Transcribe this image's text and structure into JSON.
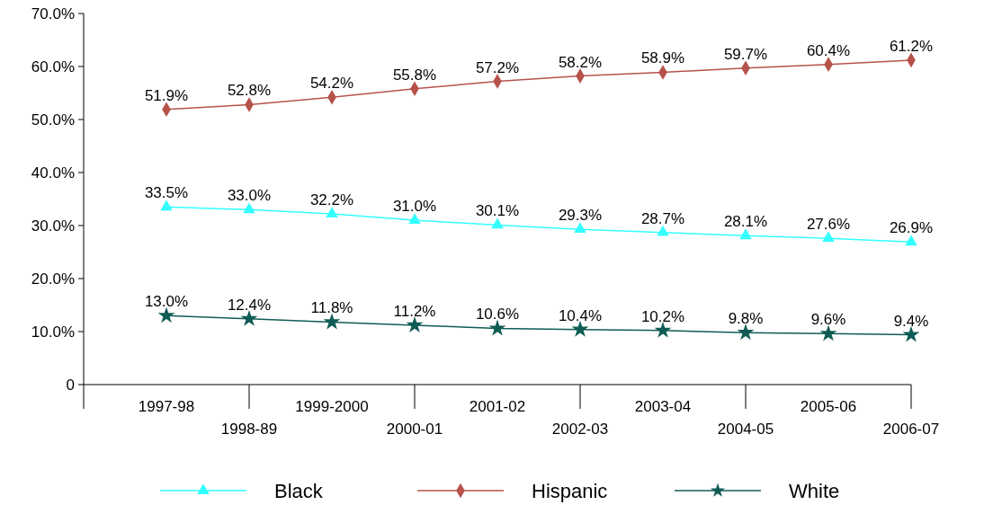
{
  "chart_data": {
    "type": "line",
    "categories": [
      "1997-98",
      "1998-89",
      "1999-2000",
      "2000-01",
      "2001-02",
      "2002-03",
      "2003-04",
      "2004-05",
      "2005-06",
      "2006-07"
    ],
    "series": [
      {
        "name": "Black",
        "color": "#33ffff",
        "marker": "triangle",
        "values": [
          33.5,
          33.0,
          32.2,
          31.0,
          30.1,
          29.3,
          28.7,
          28.1,
          27.6,
          26.9
        ],
        "value_labels": [
          "33.5%",
          "33.0%",
          "32.2%",
          "31.0%",
          "30.1%",
          "29.3%",
          "28.7%",
          "28.1%",
          "27.6%",
          "26.9%"
        ]
      },
      {
        "name": "Hispanic",
        "color": "#b5524a",
        "marker": "diamond",
        "values": [
          51.9,
          52.8,
          54.2,
          55.8,
          57.2,
          58.2,
          58.9,
          59.7,
          60.4,
          61.2
        ],
        "value_labels": [
          "51.9%",
          "52.8%",
          "54.2%",
          "55.8%",
          "57.2%",
          "58.2%",
          "58.9%",
          "59.7%",
          "60.4%",
          "61.2%"
        ]
      },
      {
        "name": "White",
        "color": "#0f5c55",
        "marker": "star",
        "values": [
          13.0,
          12.4,
          11.8,
          11.2,
          10.6,
          10.4,
          10.2,
          9.8,
          9.6,
          9.4
        ],
        "value_labels": [
          "13.0%",
          "12.4%",
          "11.8%",
          "11.2%",
          "10.6%",
          "10.4%",
          "10.2%",
          "9.8%",
          "9.6%",
          "9.4%"
        ]
      }
    ],
    "ylim": [
      0,
      70
    ],
    "yticks": [
      {
        "value": 0,
        "label": "0"
      },
      {
        "value": 10,
        "label": "10.0%"
      },
      {
        "value": 20,
        "label": "20.0%"
      },
      {
        "value": 30,
        "label": "30.0%"
      },
      {
        "value": 40,
        "label": "40.0%"
      },
      {
        "value": 50,
        "label": "50.0%"
      },
      {
        "value": 60,
        "label": "60.0%"
      },
      {
        "value": 70,
        "label": "70.0%"
      }
    ],
    "legend": "bottom",
    "line_style": "solid"
  }
}
